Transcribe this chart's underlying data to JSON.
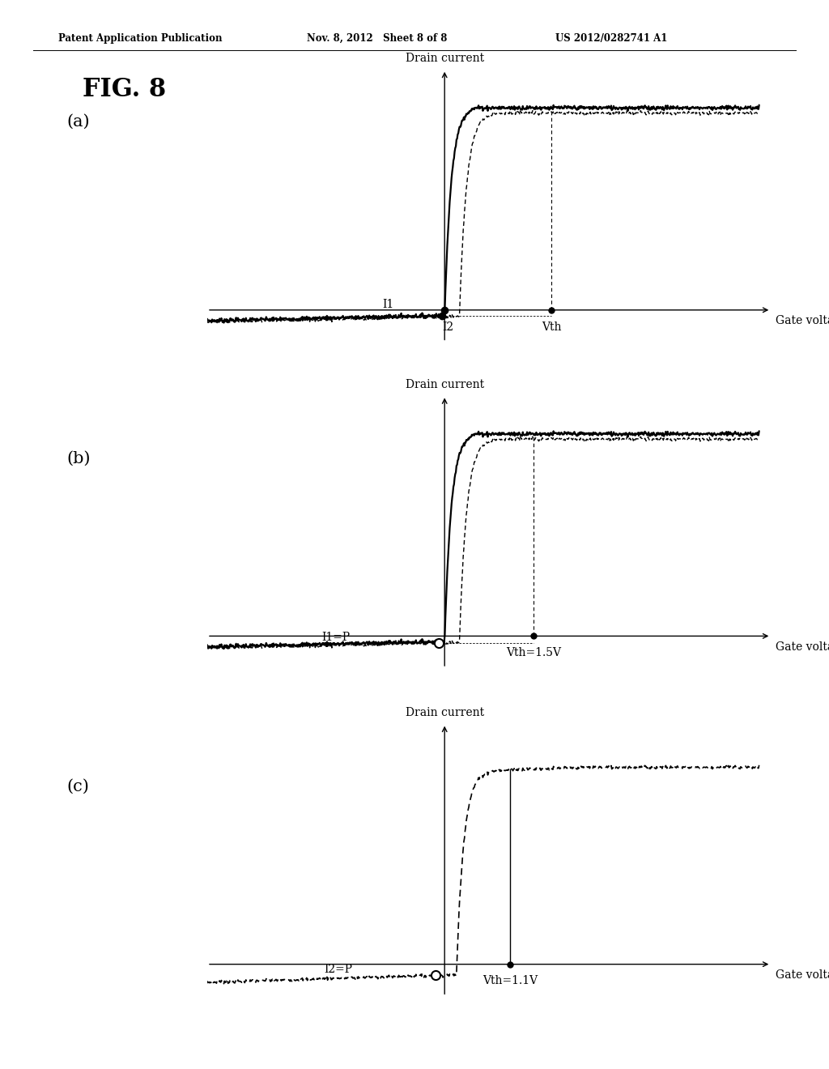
{
  "header_left": "Patent Application Publication",
  "header_mid": "Nov. 8, 2012   Sheet 8 of 8",
  "header_right": "US 2012/0282741 A1",
  "fig_label": "FIG. 8",
  "background": "#ffffff",
  "panel_a": {
    "label": "(a)",
    "drain_label": "Drain current",
    "gate_label": "Gate voltage",
    "vth_label": "Vth",
    "i1_label": "I1",
    "i2_label": "I2"
  },
  "panel_b": {
    "label": "(b)",
    "drain_label": "Drain current",
    "gate_label": "Gate voltage",
    "vth_label": "Vth=1.5V",
    "ip_label": "I1=P"
  },
  "panel_c": {
    "label": "(c)",
    "drain_label": "Drain current",
    "gate_label": "Gate voltage",
    "vth_label": "Vth=1.1V",
    "ip_label": "I2=P"
  }
}
